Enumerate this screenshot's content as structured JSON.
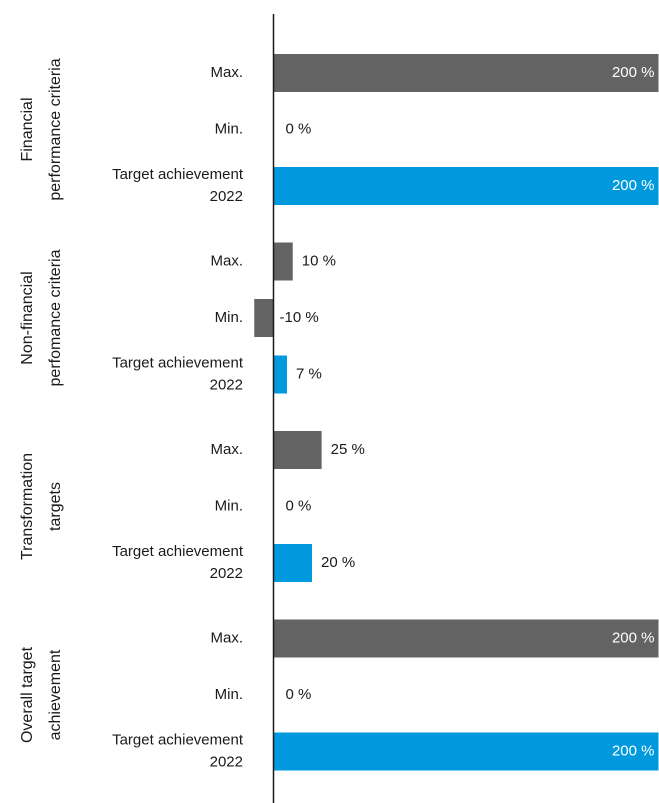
{
  "chart_data": {
    "type": "bar",
    "orientation": "horizontal",
    "title": "",
    "xlabel": "",
    "ylabel": "",
    "value_unit": "%",
    "grid": false,
    "legend": "none",
    "colors": {
      "max": "#636363",
      "min": "#636363",
      "achievement": "#0099de",
      "axis": "#1a1a1a",
      "inside_text": "#ffffff"
    },
    "groups": [
      {
        "name_lines": [
          "Financial",
          "performance criteria"
        ],
        "bars": [
          {
            "label_lines": [
              "Max."
            ],
            "value": 200,
            "value_label": "200 %",
            "kind": "max"
          },
          {
            "label_lines": [
              "Min."
            ],
            "value": 0,
            "value_label": "0 %",
            "kind": "min"
          },
          {
            "label_lines": [
              "Target achievement",
              "2022"
            ],
            "value": 200,
            "value_label": "200 %",
            "kind": "achievement"
          }
        ]
      },
      {
        "name_lines": [
          "Non-financial",
          "perfomance criteria"
        ],
        "bars": [
          {
            "label_lines": [
              "Max."
            ],
            "value": 10,
            "value_label": "10 %",
            "kind": "max"
          },
          {
            "label_lines": [
              "Min."
            ],
            "value": -10,
            "value_label": "-10 %",
            "kind": "min"
          },
          {
            "label_lines": [
              "Target achievement",
              "2022"
            ],
            "value": 7,
            "value_label": "7 %",
            "kind": "achievement"
          }
        ]
      },
      {
        "name_lines": [
          "Transformation",
          "targets"
        ],
        "bars": [
          {
            "label_lines": [
              "Max."
            ],
            "value": 25,
            "value_label": "25 %",
            "kind": "max"
          },
          {
            "label_lines": [
              "Min."
            ],
            "value": 0,
            "value_label": "0 %",
            "kind": "min"
          },
          {
            "label_lines": [
              "Target achievement",
              "2022"
            ],
            "value": 20,
            "value_label": "20 %",
            "kind": "achievement"
          }
        ]
      },
      {
        "name_lines": [
          "Overall target",
          "achievement"
        ],
        "bars": [
          {
            "label_lines": [
              "Max."
            ],
            "value": 200,
            "value_label": "200 %",
            "kind": "max"
          },
          {
            "label_lines": [
              "Min."
            ],
            "value": 0,
            "value_label": "0 %",
            "kind": "min"
          },
          {
            "label_lines": [
              "Target achievement",
              "2022"
            ],
            "value": 200,
            "value_label": "200 %",
            "kind": "achievement"
          }
        ]
      }
    ]
  }
}
